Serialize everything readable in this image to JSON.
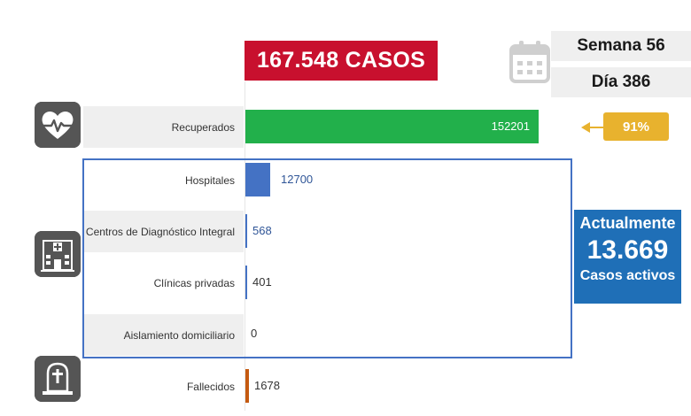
{
  "header": {
    "total_cases": "167.548 CASOS",
    "week": "Semana 56",
    "day": "Día 386"
  },
  "recovered_percent": {
    "label": "91%",
    "color": "#e8b22e"
  },
  "active_cases": {
    "line1": "Actualmente",
    "value": "13.669",
    "line3": "Casos activos",
    "color": "#1f6fb7"
  },
  "icons": {
    "calendar": "calendar-icon",
    "recovered": "heart-pulse-icon",
    "facilities": "hospital-building-icon",
    "deceased": "tombstone-icon"
  },
  "chart_data": {
    "type": "bar",
    "orientation": "horizontal",
    "title": "",
    "xlabel": "",
    "ylabel": "",
    "categories": [
      "Recuperados",
      "Hospitales",
      "Centros de Diagnóstico Integral",
      "Clínicas privadas",
      "Aislamiento domiciliario",
      "Fallecidos"
    ],
    "values": [
      152201,
      12700,
      568,
      401,
      0,
      1678
    ],
    "value_labels": [
      "152201",
      "12700",
      "568",
      "401",
      "0",
      "1678"
    ],
    "bar_colors": [
      "#22b04b",
      "#4472c4",
      "#4472c4",
      "#4472c4",
      "#4472c4",
      "#c55a11"
    ],
    "xlim": [
      0,
      167548
    ],
    "grid": false,
    "legend": "none"
  }
}
